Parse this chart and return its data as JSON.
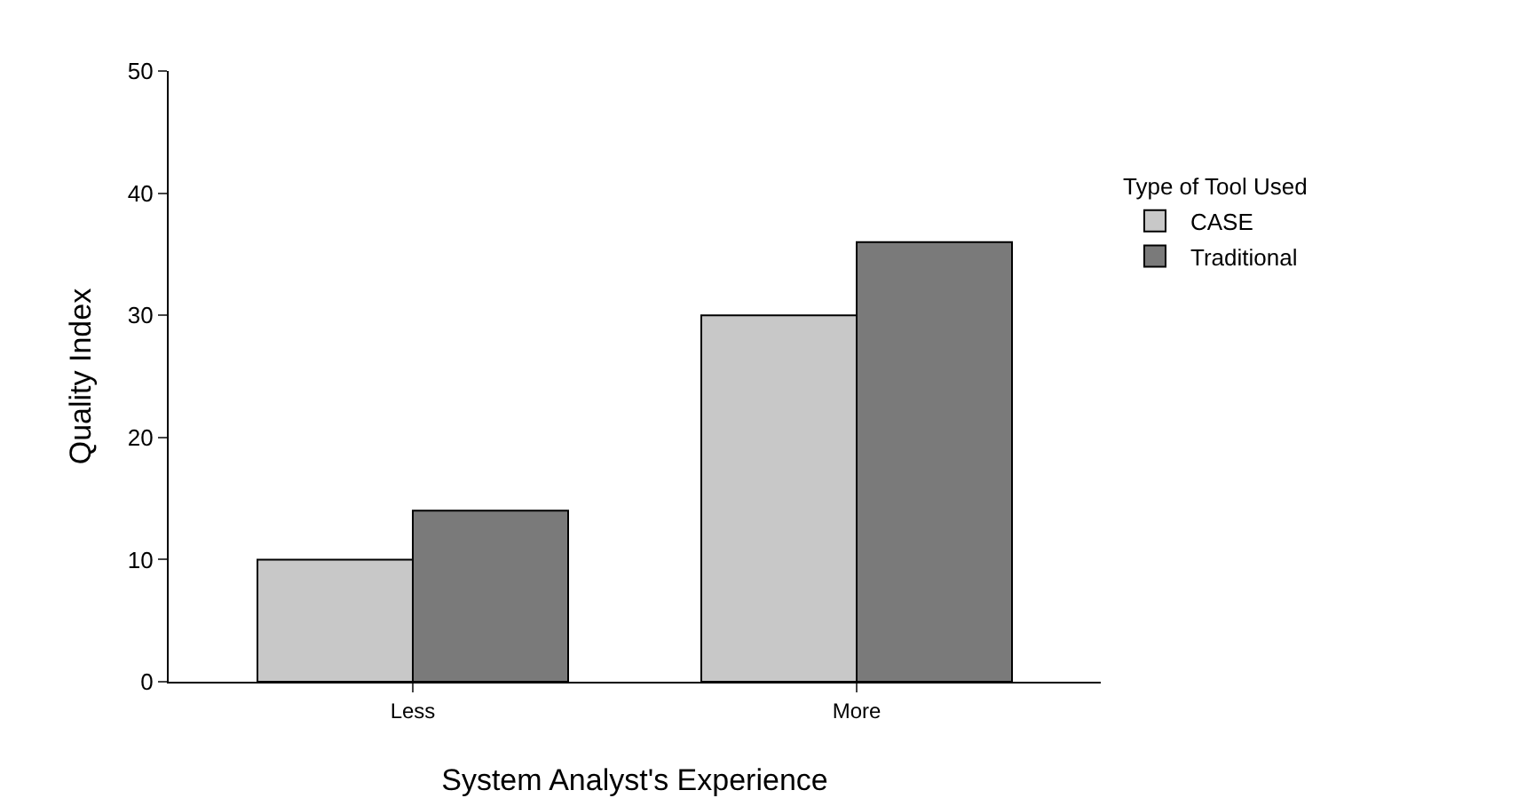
{
  "chart_data": {
    "type": "bar",
    "xlabel": "System Analyst's Experience",
    "ylabel": "Quality Index",
    "legend_title": "Type of Tool Used",
    "categories": [
      "Less",
      "More"
    ],
    "series": [
      {
        "name": "CASE",
        "color": "#c8c8c8",
        "values": [
          10,
          30
        ]
      },
      {
        "name": "Traditional",
        "color": "#7a7a7a",
        "values": [
          14,
          36
        ]
      }
    ],
    "ylim": [
      0,
      50
    ],
    "yticks": [
      0,
      10,
      20,
      30,
      40,
      50
    ],
    "grid": false,
    "legend": "right"
  }
}
